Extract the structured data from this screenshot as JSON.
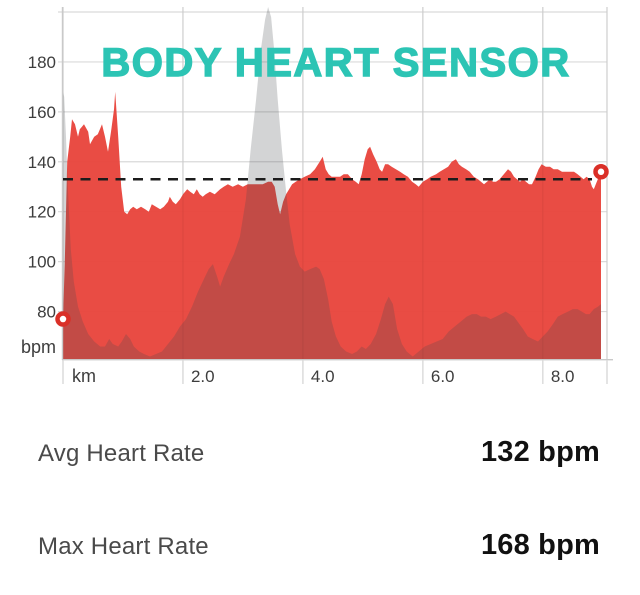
{
  "chart_data": {
    "type": "area",
    "title": "BODY HEART SENSOR",
    "x_unit_label": "km",
    "y_unit_label": "bpm",
    "y_ticks": [
      80,
      100,
      120,
      140,
      160,
      180
    ],
    "y_gridlines": [
      80,
      100,
      120,
      140,
      160,
      180,
      200
    ],
    "x_ticks": [
      2,
      4,
      6,
      8
    ],
    "x_tick_labels": [
      "2.0",
      "4.0",
      "6.0",
      "8.0"
    ],
    "xlim": [
      0,
      9.07
    ],
    "ylim": [
      61,
      202
    ],
    "grid": true,
    "avg_line_bpm": 133,
    "start_point": {
      "km": 0,
      "bpm": 77
    },
    "end_point": {
      "km": 8.97,
      "bpm": 136
    },
    "colors": {
      "heart_rate_fill": "#e8463e",
      "elevation_overlay_fill": "rgba(70,74,80,0.24)",
      "grid": "#d9d9d9",
      "grid_over_area": "rgba(0,0,0,0.05)",
      "axis": "#c9c9c9",
      "tick_text": "#3d3d3d",
      "avg_line": "#1c1c1c",
      "marker_ring": "#da2f27",
      "title": "#2cc4b4"
    },
    "series": [
      {
        "name": "heart-rate",
        "unit": "bpm",
        "points": [
          [
            0.0,
            77
          ],
          [
            0.03,
            100
          ],
          [
            0.07,
            140
          ],
          [
            0.12,
            150
          ],
          [
            0.15,
            157
          ],
          [
            0.2,
            155
          ],
          [
            0.25,
            150
          ],
          [
            0.28,
            153
          ],
          [
            0.35,
            155
          ],
          [
            0.42,
            152
          ],
          [
            0.45,
            147
          ],
          [
            0.52,
            150
          ],
          [
            0.58,
            151
          ],
          [
            0.65,
            155
          ],
          [
            0.7,
            150
          ],
          [
            0.75,
            144
          ],
          [
            0.8,
            152
          ],
          [
            0.85,
            161
          ],
          [
            0.87,
            168
          ],
          [
            0.92,
            150
          ],
          [
            0.97,
            130
          ],
          [
            1.02,
            120
          ],
          [
            1.07,
            119
          ],
          [
            1.12,
            121
          ],
          [
            1.17,
            122
          ],
          [
            1.23,
            121
          ],
          [
            1.3,
            122
          ],
          [
            1.37,
            121
          ],
          [
            1.43,
            120
          ],
          [
            1.48,
            123
          ],
          [
            1.55,
            122
          ],
          [
            1.62,
            121
          ],
          [
            1.68,
            122
          ],
          [
            1.75,
            124
          ],
          [
            1.78,
            126
          ],
          [
            1.83,
            124
          ],
          [
            1.88,
            123
          ],
          [
            1.95,
            125
          ],
          [
            2.0,
            127
          ],
          [
            2.07,
            129
          ],
          [
            2.12,
            128
          ],
          [
            2.18,
            127
          ],
          [
            2.23,
            129
          ],
          [
            2.28,
            127
          ],
          [
            2.33,
            126
          ],
          [
            2.38,
            127
          ],
          [
            2.45,
            128
          ],
          [
            2.53,
            127
          ],
          [
            2.62,
            129
          ],
          [
            2.68,
            130
          ],
          [
            2.75,
            131
          ],
          [
            2.83,
            130
          ],
          [
            2.92,
            131
          ],
          [
            3.0,
            130
          ],
          [
            3.08,
            131
          ],
          [
            3.17,
            131
          ],
          [
            3.25,
            131
          ],
          [
            3.33,
            131
          ],
          [
            3.42,
            132
          ],
          [
            3.48,
            132
          ],
          [
            3.53,
            130
          ],
          [
            3.58,
            123
          ],
          [
            3.62,
            119
          ],
          [
            3.67,
            124
          ],
          [
            3.72,
            127
          ],
          [
            3.77,
            129
          ],
          [
            3.82,
            131
          ],
          [
            3.88,
            132
          ],
          [
            3.95,
            133
          ],
          [
            4.03,
            134
          ],
          [
            4.12,
            135
          ],
          [
            4.2,
            137
          ],
          [
            4.28,
            140
          ],
          [
            4.33,
            142
          ],
          [
            4.38,
            137
          ],
          [
            4.43,
            135
          ],
          [
            4.48,
            134
          ],
          [
            4.55,
            134
          ],
          [
            4.62,
            134
          ],
          [
            4.68,
            135
          ],
          [
            4.75,
            135
          ],
          [
            4.82,
            133
          ],
          [
            4.88,
            132
          ],
          [
            4.93,
            131
          ],
          [
            4.98,
            135
          ],
          [
            5.03,
            141
          ],
          [
            5.08,
            145
          ],
          [
            5.12,
            146
          ],
          [
            5.17,
            143
          ],
          [
            5.23,
            140
          ],
          [
            5.28,
            137
          ],
          [
            5.32,
            136
          ],
          [
            5.37,
            139
          ],
          [
            5.42,
            139
          ],
          [
            5.48,
            138
          ],
          [
            5.55,
            137
          ],
          [
            5.62,
            136
          ],
          [
            5.68,
            135
          ],
          [
            5.75,
            134
          ],
          [
            5.82,
            132
          ],
          [
            5.88,
            131
          ],
          [
            5.93,
            130
          ],
          [
            6.0,
            132
          ],
          [
            6.07,
            133
          ],
          [
            6.13,
            134
          ],
          [
            6.22,
            135
          ],
          [
            6.28,
            136
          ],
          [
            6.35,
            137
          ],
          [
            6.42,
            138
          ],
          [
            6.48,
            140
          ],
          [
            6.55,
            141
          ],
          [
            6.6,
            139
          ],
          [
            6.65,
            138
          ],
          [
            6.72,
            137
          ],
          [
            6.78,
            136
          ],
          [
            6.85,
            134
          ],
          [
            6.92,
            133
          ],
          [
            6.97,
            132
          ],
          [
            7.02,
            131
          ],
          [
            7.07,
            132
          ],
          [
            7.12,
            133
          ],
          [
            7.17,
            132
          ],
          [
            7.22,
            132
          ],
          [
            7.28,
            133
          ],
          [
            7.35,
            135
          ],
          [
            7.42,
            137
          ],
          [
            7.47,
            136
          ],
          [
            7.52,
            134
          ],
          [
            7.57,
            133
          ],
          [
            7.62,
            132
          ],
          [
            7.67,
            133
          ],
          [
            7.72,
            132
          ],
          [
            7.77,
            131
          ],
          [
            7.82,
            131
          ],
          [
            7.88,
            134
          ],
          [
            7.93,
            137
          ],
          [
            7.98,
            139
          ],
          [
            8.05,
            138
          ],
          [
            8.12,
            138
          ],
          [
            8.18,
            137
          ],
          [
            8.25,
            137
          ],
          [
            8.32,
            136
          ],
          [
            8.38,
            136
          ],
          [
            8.45,
            136
          ],
          [
            8.52,
            136
          ],
          [
            8.58,
            135
          ],
          [
            8.63,
            134
          ],
          [
            8.68,
            133
          ],
          [
            8.73,
            134
          ],
          [
            8.78,
            133
          ],
          [
            8.82,
            130
          ],
          [
            8.85,
            129
          ],
          [
            8.9,
            132
          ],
          [
            8.95,
            135
          ],
          [
            8.97,
            136
          ]
        ]
      },
      {
        "name": "elevation-overlay",
        "unit": "",
        "points": [
          [
            0.0,
            168
          ],
          [
            0.02,
            166
          ],
          [
            0.05,
            150
          ],
          [
            0.08,
            130
          ],
          [
            0.13,
            105
          ],
          [
            0.18,
            92
          ],
          [
            0.25,
            82
          ],
          [
            0.33,
            76
          ],
          [
            0.42,
            71
          ],
          [
            0.52,
            68
          ],
          [
            0.62,
            66
          ],
          [
            0.7,
            66
          ],
          [
            0.77,
            69
          ],
          [
            0.83,
            67
          ],
          [
            0.92,
            66
          ],
          [
            0.98,
            68
          ],
          [
            1.05,
            71
          ],
          [
            1.12,
            69
          ],
          [
            1.18,
            66
          ],
          [
            1.27,
            64
          ],
          [
            1.35,
            63
          ],
          [
            1.45,
            62
          ],
          [
            1.55,
            63
          ],
          [
            1.65,
            64
          ],
          [
            1.75,
            67
          ],
          [
            1.85,
            70
          ],
          [
            1.95,
            74
          ],
          [
            2.05,
            77
          ],
          [
            2.15,
            82
          ],
          [
            2.25,
            88
          ],
          [
            2.35,
            93
          ],
          [
            2.43,
            97
          ],
          [
            2.5,
            99
          ],
          [
            2.57,
            94
          ],
          [
            2.62,
            90
          ],
          [
            2.68,
            94
          ],
          [
            2.77,
            99
          ],
          [
            2.85,
            103
          ],
          [
            2.95,
            110
          ],
          [
            3.05,
            125
          ],
          [
            3.13,
            145
          ],
          [
            3.22,
            165
          ],
          [
            3.3,
            185
          ],
          [
            3.37,
            197
          ],
          [
            3.42,
            202
          ],
          [
            3.47,
            198
          ],
          [
            3.52,
            185
          ],
          [
            3.58,
            165
          ],
          [
            3.65,
            145
          ],
          [
            3.72,
            128
          ],
          [
            3.78,
            115
          ],
          [
            3.87,
            103
          ],
          [
            3.95,
            98
          ],
          [
            4.03,
            96
          ],
          [
            4.12,
            97
          ],
          [
            4.22,
            98
          ],
          [
            4.28,
            97
          ],
          [
            4.35,
            93
          ],
          [
            4.42,
            85
          ],
          [
            4.48,
            76
          ],
          [
            4.55,
            70
          ],
          [
            4.63,
            66
          ],
          [
            4.72,
            64
          ],
          [
            4.82,
            63
          ],
          [
            4.9,
            64
          ],
          [
            4.98,
            66
          ],
          [
            5.05,
            65
          ],
          [
            5.13,
            67
          ],
          [
            5.22,
            71
          ],
          [
            5.3,
            77
          ],
          [
            5.37,
            83
          ],
          [
            5.43,
            86
          ],
          [
            5.5,
            83
          ],
          [
            5.57,
            73
          ],
          [
            5.65,
            67
          ],
          [
            5.73,
            64
          ],
          [
            5.83,
            62
          ],
          [
            5.93,
            64
          ],
          [
            6.03,
            66
          ],
          [
            6.13,
            67
          ],
          [
            6.23,
            68
          ],
          [
            6.33,
            69
          ],
          [
            6.43,
            72
          ],
          [
            6.53,
            74
          ],
          [
            6.63,
            76
          ],
          [
            6.73,
            78
          ],
          [
            6.82,
            79
          ],
          [
            6.9,
            79
          ],
          [
            6.97,
            78
          ],
          [
            7.05,
            78
          ],
          [
            7.13,
            77
          ],
          [
            7.22,
            78
          ],
          [
            7.3,
            79
          ],
          [
            7.38,
            80
          ],
          [
            7.45,
            79
          ],
          [
            7.52,
            78
          ],
          [
            7.58,
            76
          ],
          [
            7.67,
            73
          ],
          [
            7.75,
            70
          ],
          [
            7.83,
            69
          ],
          [
            7.92,
            68
          ],
          [
            8.0,
            70
          ],
          [
            8.08,
            72
          ],
          [
            8.17,
            75
          ],
          [
            8.25,
            78
          ],
          [
            8.33,
            79
          ],
          [
            8.42,
            80
          ],
          [
            8.5,
            81
          ],
          [
            8.58,
            81
          ],
          [
            8.65,
            80
          ],
          [
            8.72,
            79
          ],
          [
            8.78,
            79
          ],
          [
            8.85,
            81
          ],
          [
            8.92,
            82
          ],
          [
            8.97,
            83
          ]
        ]
      }
    ]
  },
  "stats": [
    {
      "label": "Avg Heart Rate",
      "value": "132 bpm"
    },
    {
      "label": "Max Heart Rate",
      "value": "168 bpm"
    }
  ]
}
